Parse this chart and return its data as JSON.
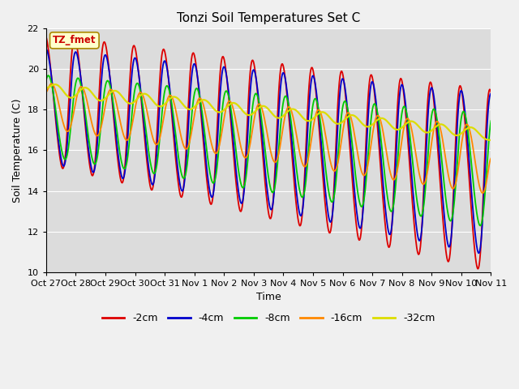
{
  "title": "Tonzi Soil Temperatures Set C",
  "xlabel": "Time",
  "ylabel": "Soil Temperature (C)",
  "ylim": [
    10,
    22
  ],
  "yticks": [
    10,
    12,
    14,
    16,
    18,
    20,
    22
  ],
  "annotation_text": "TZ_fmet",
  "annotation_color": "#cc0000",
  "annotation_bg": "#ffffcc",
  "annotation_border": "#aa8800",
  "series_colors": {
    "-2cm": "#dd0000",
    "-4cm": "#0000cc",
    "-8cm": "#00cc00",
    "-16cm": "#ff8800",
    "-32cm": "#dddd00"
  },
  "x_labels": [
    "Oct 27",
    "Oct 28",
    "Oct 29",
    "Oct 30",
    "Oct 31",
    "Nov 1",
    "Nov 2",
    "Nov 3",
    "Nov 4",
    "Nov 5",
    "Nov 6",
    "Nov 7",
    "Nov 8",
    "Nov 9",
    "Nov 10",
    "Nov 11"
  ],
  "bg_color": "#dcdcdc",
  "grid_color": "#ffffff",
  "figsize": [
    6.4,
    4.8
  ],
  "dpi": 100
}
